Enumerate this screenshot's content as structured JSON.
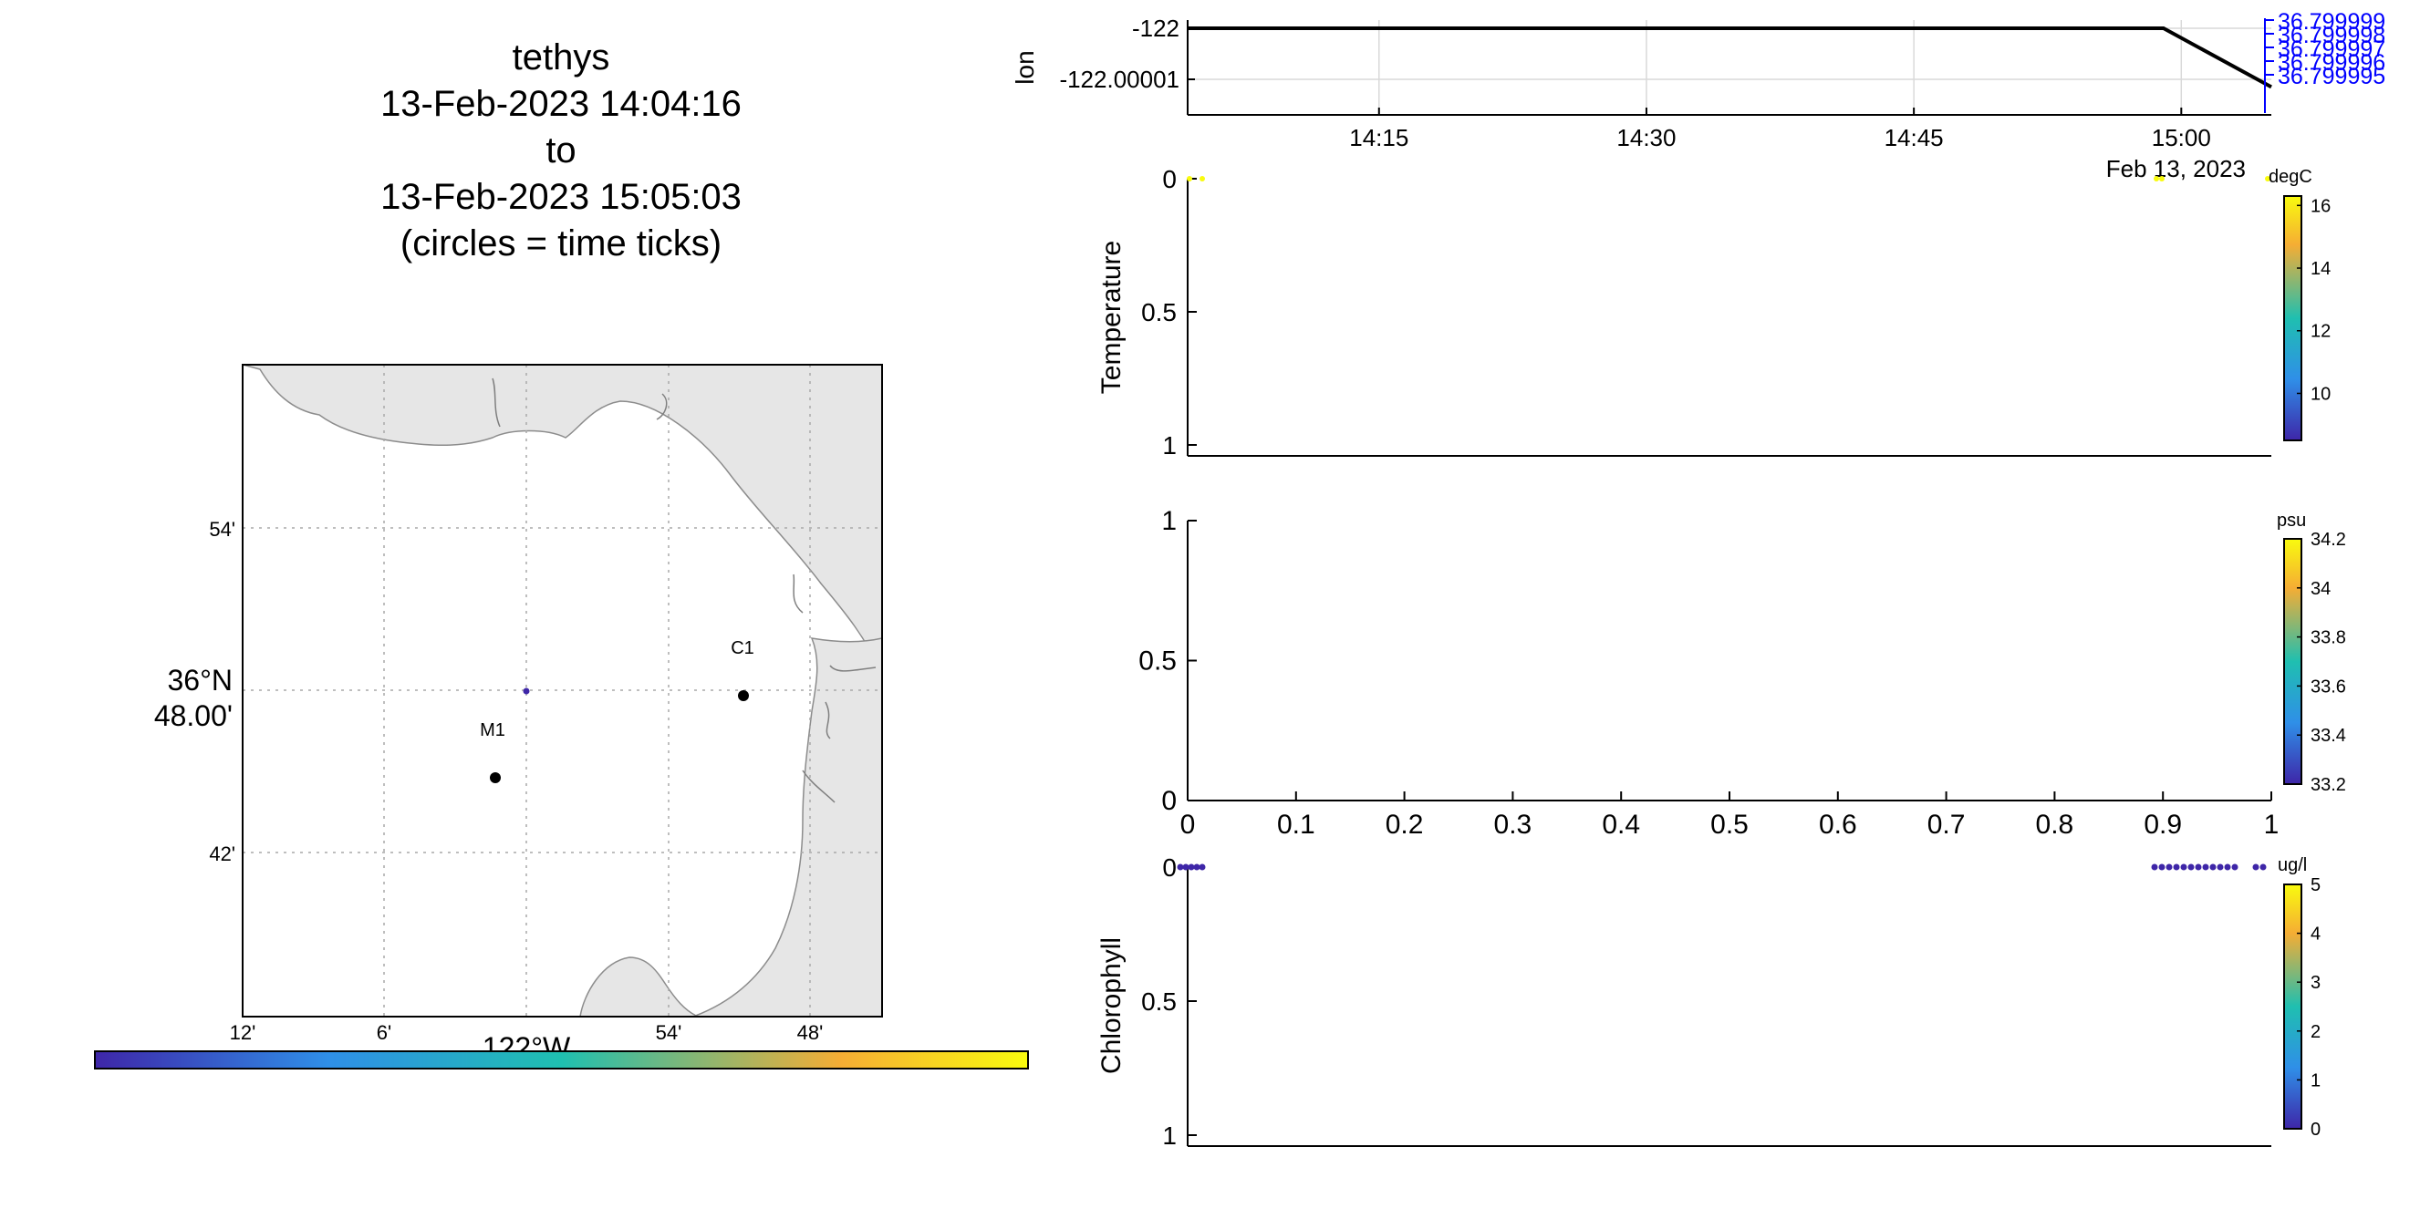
{
  "title": {
    "line1": "tethys",
    "line2": "13-Feb-2023 14:04:16",
    "line3": "to",
    "line4": "13-Feb-2023 15:05:03",
    "line5": "(circles = time ticks)"
  },
  "colors": {
    "parula_dark": "#3e26a8",
    "parula_blue": "#2f8fe8",
    "parula_teal": "#1fbfb0",
    "parula_orange": "#f5ad34",
    "parula_yellow": "#f9fb0e",
    "land": "#e6e6e6",
    "right_axis_blue": "#0000ff"
  },
  "map": {
    "lat_ticks": [
      "54'",
      "42'"
    ],
    "lat_center_label": [
      "36°N",
      "48.00'"
    ],
    "lon_ticks": [
      "12'",
      "6'",
      "54'",
      "48'"
    ],
    "lon_center_label": "122°W",
    "stations": [
      {
        "name": "M1",
        "lon": -122.03,
        "lat": 36.75
      },
      {
        "name": "C1",
        "lon": -121.85,
        "lat": 36.797
      }
    ],
    "track_point": {
      "lon": -122.0,
      "lat": 36.8
    }
  },
  "chart_data": [
    {
      "type": "line",
      "panel": "lon",
      "ylabel": "lon",
      "x": [
        "14:04:16",
        "14:59:00",
        "15:05:03"
      ],
      "y": [
        -122,
        -122,
        -122.0000115
      ],
      "x_ticks": [
        "14:15",
        "14:30",
        "14:45",
        "15:00"
      ],
      "x_date_label": "Feb 13, 2023",
      "y_ticks": [
        "-122",
        "-122.00001"
      ],
      "y2": [
        36.799999,
        36.799999,
        36.799995
      ],
      "y2_ticks": [
        "36.799999",
        "36.799998",
        "36.799997",
        "36.799996",
        "36.799995"
      ],
      "grid": true
    },
    {
      "type": "scatter",
      "panel": "temperature",
      "ylabel": "Temperature",
      "y_ticks": [
        "0",
        "0.5",
        "1"
      ],
      "colorbar": {
        "unit": "degC",
        "ticks": [
          "16",
          "14",
          "12",
          "10"
        ],
        "range": [
          8.5,
          16.3
        ]
      }
    },
    {
      "type": "scatter",
      "panel": "salinity",
      "ylabel": "",
      "x_ticks": [
        "0",
        "0.1",
        "0.2",
        "0.3",
        "0.4",
        "0.5",
        "0.6",
        "0.7",
        "0.8",
        "0.9",
        "1"
      ],
      "y_ticks": [
        "1",
        "0.5",
        "0"
      ],
      "xlim": [
        0,
        1
      ],
      "ylim": [
        0,
        1
      ],
      "colorbar": {
        "unit": "psu",
        "ticks": [
          "34.2",
          "34",
          "33.8",
          "33.6",
          "33.4",
          "33.2"
        ],
        "range": [
          33.2,
          34.2
        ]
      }
    },
    {
      "type": "scatter",
      "panel": "chlorophyll",
      "ylabel": "Chlorophyll",
      "y_ticks": [
        "0",
        "0.5",
        "1"
      ],
      "colorbar": {
        "unit": "ug/l",
        "ticks": [
          "5",
          "4",
          "3",
          "2",
          "1",
          "0"
        ],
        "range": [
          0,
          5
        ]
      }
    }
  ]
}
